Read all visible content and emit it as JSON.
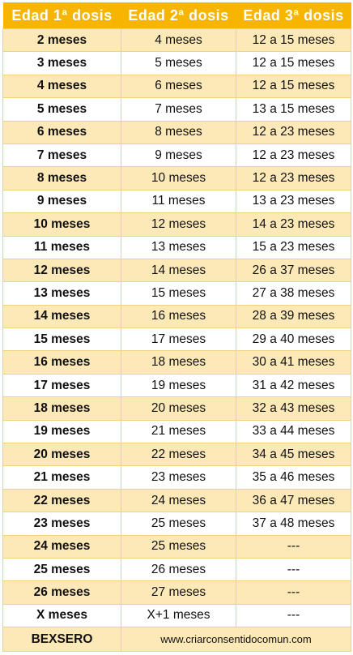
{
  "headers": [
    "Edad 1ª dosis",
    "Edad 2ª dosis",
    "Edad 3ª dosis"
  ],
  "rows": [
    [
      "2 meses",
      "4 meses",
      "12 a 15 meses"
    ],
    [
      "3 meses",
      "5 meses",
      "12 a 15 meses"
    ],
    [
      "4 meses",
      "6 meses",
      "12 a 15 meses"
    ],
    [
      "5 meses",
      "7 meses",
      "13 a 15 meses"
    ],
    [
      "6 meses",
      "8 meses",
      "12 a 23 meses"
    ],
    [
      "7 meses",
      "9 meses",
      "12 a 23 meses"
    ],
    [
      "8 meses",
      "10 meses",
      "12 a 23 meses"
    ],
    [
      "9 meses",
      "11 meses",
      "13 a 23 meses"
    ],
    [
      "10 meses",
      "12 meses",
      "14 a 23 meses"
    ],
    [
      "11 meses",
      "13 meses",
      "15 a 23 meses"
    ],
    [
      "12 meses",
      "14 meses",
      "26 a 37 meses"
    ],
    [
      "13 meses",
      "15 meses",
      "27 a 38 meses"
    ],
    [
      "14 meses",
      "16 meses",
      "28 a 39 meses"
    ],
    [
      "15 meses",
      "17 meses",
      "29 a 40 meses"
    ],
    [
      "16 meses",
      "18 meses",
      "30 a 41 meses"
    ],
    [
      "17 meses",
      "19 meses",
      "31 a 42 meses"
    ],
    [
      "18 meses",
      "20 meses",
      "32 a 43 meses"
    ],
    [
      "19 meses",
      "21 meses",
      "33 a 44 meses"
    ],
    [
      "20 meses",
      "22 meses",
      "34 a 45 meses"
    ],
    [
      "21 meses",
      "23 meses",
      "35 a 46 meses"
    ],
    [
      "22 meses",
      "24 meses",
      "36 a 47 meses"
    ],
    [
      "23 meses",
      "25 meses",
      "37 a 48 meses"
    ],
    [
      "24 meses",
      "25 meses",
      "---"
    ],
    [
      "25 meses",
      "26 meses",
      "---"
    ],
    [
      "26 meses",
      "27 meses",
      "---"
    ],
    [
      "X meses",
      "X+1 meses",
      "---"
    ]
  ],
  "footer": {
    "label": "BEXSERO",
    "website": "www.criarconsentidocomun.com"
  },
  "colors": {
    "header_bg": "#f7b500",
    "stripe_bg": "#fde9b8",
    "border": "#f4d27c"
  }
}
